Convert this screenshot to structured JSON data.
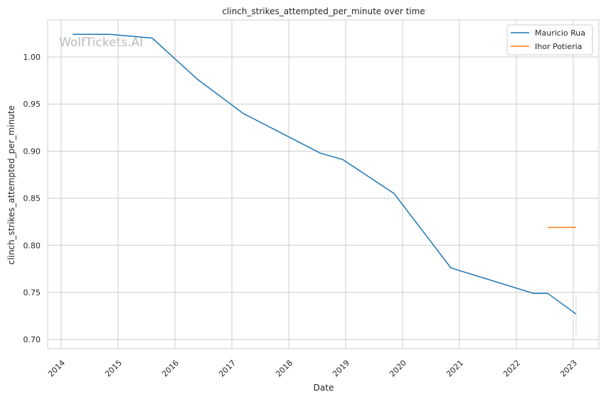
{
  "chart_data": {
    "type": "line",
    "title": "clinch_strikes_attempted_per_minute over time",
    "xlabel": "Date",
    "ylabel": "clinch_strikes_attempted_per_minute",
    "xlim": [
      2013.8,
      2023.45
    ],
    "ylim": [
      0.69,
      1.039
    ],
    "xticks": [
      "2014",
      "2015",
      "2016",
      "2017",
      "2018",
      "2019",
      "2020",
      "2021",
      "2022",
      "2023"
    ],
    "yticks": [
      "0.70",
      "0.75",
      "0.80",
      "0.85",
      "0.90",
      "0.95",
      "1.00"
    ],
    "grid": true,
    "legend_placement": "top-right",
    "watermark": "WolfTickets.AI",
    "series": [
      {
        "name": "Mauricio Rua",
        "color": "#1f77b4",
        "x": [
          2014.2,
          2014.85,
          2015.6,
          2016.4,
          2017.2,
          2018.55,
          2018.95,
          2019.85,
          2020.85,
          2022.3,
          2022.55,
          2023.05
        ],
        "y": [
          1.024,
          1.024,
          1.02,
          0.976,
          0.94,
          0.898,
          0.891,
          0.855,
          0.776,
          0.749,
          0.749,
          0.727
        ],
        "band": {
          "x": 2023.05,
          "low": 0.705,
          "high": 0.748
        }
      },
      {
        "name": "Ihor Potieria",
        "color": "#ff7f0e",
        "x": [
          2022.55,
          2023.05
        ],
        "y": [
          0.819,
          0.819
        ]
      }
    ]
  }
}
